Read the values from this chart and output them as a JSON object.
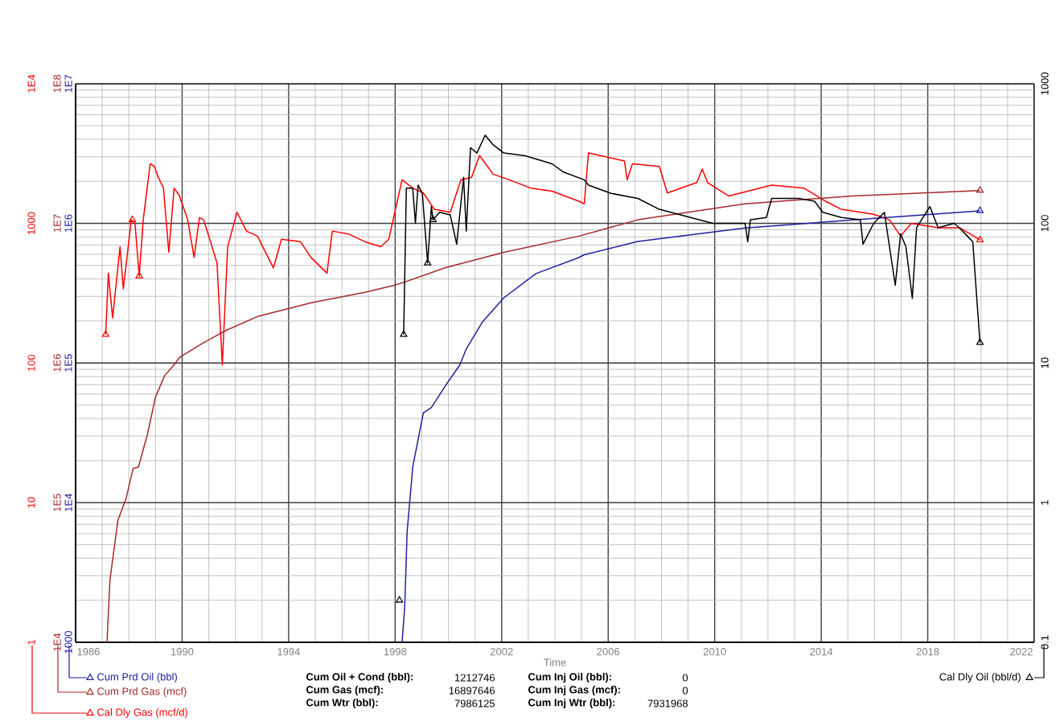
{
  "chart_data": [
    {
      "type": "line",
      "xlabel": "Time",
      "xlim": [
        1986,
        2022
      ],
      "xticks": [
        1986,
        1990,
        1994,
        1998,
        2002,
        2006,
        2010,
        2014,
        2018,
        2022
      ],
      "ylim": [
        1,
        10000
      ],
      "yticks": [
        1,
        10,
        100,
        1000,
        {
          "value": 10000,
          "label": "1E4"
        }
      ],
      "log": true,
      "grid": true,
      "legend": "bottom",
      "annotations": [
        "Cum Oil + Cond (bbl):",
        "1212746",
        "Cum Gas (mcf):",
        "16897646",
        "Cum Wtr (bbl):",
        "7986125",
        "Cum Inj Oil (bbl):",
        "0",
        "Cum Inj Gas (mcf):",
        "0",
        "Cum Inj Wtr (bbl):",
        "7931968"
      ],
      "series": [
        {
          "name": "Cal Dly Gas (mcf/d)",
          "color": "#ff0000",
          "x": [
            1987.13,
            1987.23,
            1987.39,
            1987.67,
            1987.79,
            1987.93,
            1988.09,
            1988.23,
            1988.39,
            1988.54,
            1988.8,
            1988.96,
            1989.1,
            1989.3,
            1989.5,
            1989.7,
            1989.9,
            1990.21,
            1990.45,
            1990.65,
            1990.81,
            1991.31,
            1991.51,
            1991.71,
            1992.06,
            1992.42,
            1992.83,
            1993.23,
            1993.43,
            1993.73,
            1994.44,
            1994.84,
            1995.44,
            1995.64,
            1996.25,
            1996.85,
            1997.46,
            1997.76,
            1998.26,
            1998.66,
            1999.06,
            1999.47,
            2000.07,
            2000.47,
            2000.87,
            2001.17,
            2001.68,
            2002.28,
            2003.09,
            2003.89,
            2004.9,
            2005.1,
            2005.26,
            2006.61,
            2006.71,
            2006.91,
            2007.92,
            2008.22,
            2009.33,
            2009.53,
            2009.73,
            2010.53,
            2012.14,
            2013.35,
            2014.16,
            2014.76,
            2015.97,
            2016.57,
            2016.98,
            2017.38,
            2018.39,
            2019.19,
            2019.59,
            2019.96
          ],
          "values": [
            160,
            440,
            210,
            680,
            340,
            570,
            1060,
            1000,
            420,
            1060,
            2670,
            2560,
            2140,
            1790,
            620,
            1790,
            1570,
            1060,
            570,
            1100,
            1060,
            520,
            97,
            680,
            1200,
            880,
            810,
            570,
            480,
            770,
            740,
            570,
            440,
            880,
            840,
            740,
            680,
            770,
            2050,
            1790,
            1650,
            1260,
            1200,
            2050,
            2140,
            3060,
            2250,
            2050,
            1790,
            1700,
            1440,
            1380,
            3190,
            2800,
            2050,
            2670,
            2560,
            1650,
            1960,
            2450,
            1960,
            1570,
            1880,
            1790,
            1440,
            1260,
            1160,
            1060,
            810,
            1000,
            930,
            930,
            840,
            760
          ]
        },
        {
          "type": "scatter",
          "marker": "triangle",
          "color": "#ff0000",
          "x": [
            1987.13,
            1988.13,
            1988.39,
            2019.96
          ],
          "values": [
            160,
            1060,
            420,
            760
          ]
        }
      ]
    },
    {
      "type": "line",
      "xlim": [
        1986,
        2022
      ],
      "xticks": [
        1986,
        1990,
        1994,
        1998,
        2002,
        2006,
        2010,
        2014,
        2018,
        2022
      ],
      "tick_labels": "y",
      "ylim": [
        10000,
        100000000
      ],
      "yticks": [
        {
          "value": 10000,
          "label": "1E4"
        },
        {
          "value": 100000,
          "label": "1E5"
        },
        {
          "value": 1000000,
          "label": "1E6"
        },
        {
          "value": 10000000,
          "label": "1E7"
        },
        {
          "value": 100000000,
          "label": "1E8"
        }
      ],
      "log": true,
      "legend": "bottom",
      "series": [
        {
          "name": "Cum Prd Gas (mcf)",
          "color": "#a52a2a",
          "x": [
            1987.18,
            1987.29,
            1987.59,
            1987.89,
            1988.16,
            1988.36,
            1988.7,
            1989.0,
            1989.34,
            1989.7,
            1989.91,
            1990.81,
            1991.62,
            1992.82,
            1994.84,
            1996.85,
            1997.96,
            1998.36,
            1999.87,
            2002.08,
            2004.9,
            2007.11,
            2011.14,
            2015.17,
            2019.96
          ],
          "values": [
            10000,
            28000,
            75000,
            106000,
            176000,
            180000,
            310000,
            570000,
            810000,
            970000,
            1100000,
            1400000,
            1700000,
            2150000,
            2700000,
            3200000,
            3600000,
            3800000,
            4800000,
            6200000,
            8100000,
            10600000,
            13800000,
            15700000,
            17200000
          ]
        },
        {
          "type": "scatter",
          "marker": "triangle",
          "color": "#a52a2a",
          "x": [
            2019.96
          ],
          "values": [
            17200000
          ]
        }
      ]
    },
    {
      "type": "line",
      "xlim": [
        1986,
        2022
      ],
      "xticks": [
        1986,
        1990,
        1994,
        1998,
        2002,
        2006,
        2010,
        2014,
        2018,
        2022
      ],
      "tick_labels": "y",
      "ylim": [
        1000,
        10000000
      ],
      "yticks": [
        1000,
        {
          "value": 10000,
          "label": "1E4"
        },
        {
          "value": 100000,
          "label": "1E5"
        },
        {
          "value": 1000000,
          "label": "1E6"
        },
        {
          "value": 10000000,
          "label": "1E7"
        }
      ],
      "log": true,
      "legend": "bottom",
      "series": [
        {
          "name": "Cum Prd Oil (bbl)",
          "color": "#2020a0",
          "x": [
            1998.26,
            1998.36,
            1998.45,
            1998.66,
            1999.06,
            1999.36,
            1999.87,
            2000.43,
            2000.67,
            2001.28,
            2002.08,
            2003.29,
            2004.9,
            2005.1,
            2007.11,
            2011.14,
            2015.17,
            2019.96
          ],
          "values": [
            1000,
            1800,
            6200,
            18000,
            44000,
            48000,
            68000,
            97000,
            126000,
            197000,
            293000,
            437000,
            569000,
            596000,
            741000,
            925000,
            1057000,
            1230000
          ]
        },
        {
          "type": "scatter",
          "marker": "triangle",
          "color": "#2020a0",
          "x": [
            2019.96
          ],
          "values": [
            1230000
          ]
        }
      ]
    },
    {
      "type": "line",
      "xlim": [
        1986,
        2022
      ],
      "xticks": [
        1986,
        1990,
        1994,
        1998,
        2002,
        2006,
        2010,
        2014,
        2018,
        2022
      ],
      "tick_labels": "y",
      "ylim": [
        0.1,
        1000
      ],
      "yticks": [
        0.1,
        1,
        10,
        100,
        1000
      ],
      "log": true,
      "legend": "bottom",
      "series": [
        {
          "name": "Cal Dly Oil (bbl/d)",
          "color": "#000000",
          "x": [
            1998.32,
            1998.42,
            1998.66,
            1998.76,
            1998.86,
            1999.02,
            1999.22,
            1999.36,
            1999.42,
            1999.67,
            2000.07,
            2000.31,
            2000.57,
            2000.67,
            2000.83,
            2001.07,
            2001.38,
            2001.68,
            2002.08,
            2002.88,
            2003.89,
            2004.3,
            2005.1,
            2005.26,
            2006.11,
            2007.11,
            2007.92,
            2008.72,
            2009.93,
            2011.14,
            2011.24,
            2011.34,
            2011.94,
            2012.14,
            2013.15,
            2013.75,
            2014.06,
            2014.76,
            2015.47,
            2015.57,
            2015.97,
            2016.37,
            2016.78,
            2016.98,
            2017.18,
            2017.42,
            2017.58,
            2018.08,
            2018.39,
            2018.99,
            2019.19,
            2019.49,
            2019.69,
            2019.96
          ],
          "values": [
            16,
            179,
            179,
            100,
            188,
            164,
            52,
            132,
            106,
            120,
            115,
            71,
            214,
            88,
            348,
            319,
            428,
            365,
            319,
            305,
            267,
            234,
            205,
            188,
            164,
            151,
            126,
            115,
            100,
            100,
            74,
            106,
            110,
            151,
            151,
            144,
            120,
            110,
            106,
            71,
            100,
            120,
            36,
            84,
            68,
            29,
            93,
            132,
            93,
            100,
            93,
            81,
            74,
            14
          ]
        },
        {
          "type": "scatter",
          "marker": "triangle",
          "color": "#000000",
          "x": [
            1998.16,
            1998.32,
            1999.22,
            1999.42,
            2019.96
          ],
          "values": [
            0.2,
            16,
            52,
            106,
            14
          ]
        }
      ]
    }
  ]
}
